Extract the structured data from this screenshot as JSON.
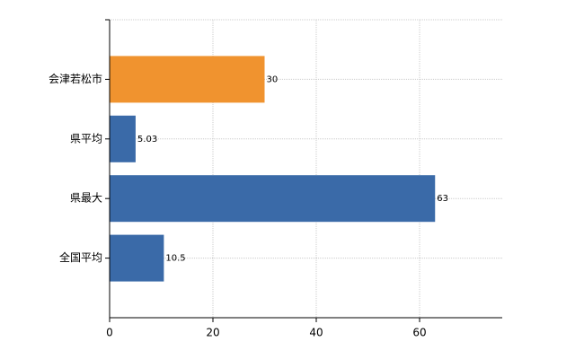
{
  "chart_data": {
    "type": "bar",
    "orientation": "horizontal",
    "categories": [
      "会津若松市",
      "県平均",
      "県最大",
      "全国平均"
    ],
    "values": [
      30,
      5.03,
      63,
      10.5
    ],
    "colors": [
      "#f0932f",
      "#3a6aa8",
      "#3a6aa8",
      "#3a6aa8"
    ],
    "xlim": [
      0,
      76
    ],
    "xticks": [
      0,
      20,
      40,
      60
    ],
    "grid": true
  }
}
